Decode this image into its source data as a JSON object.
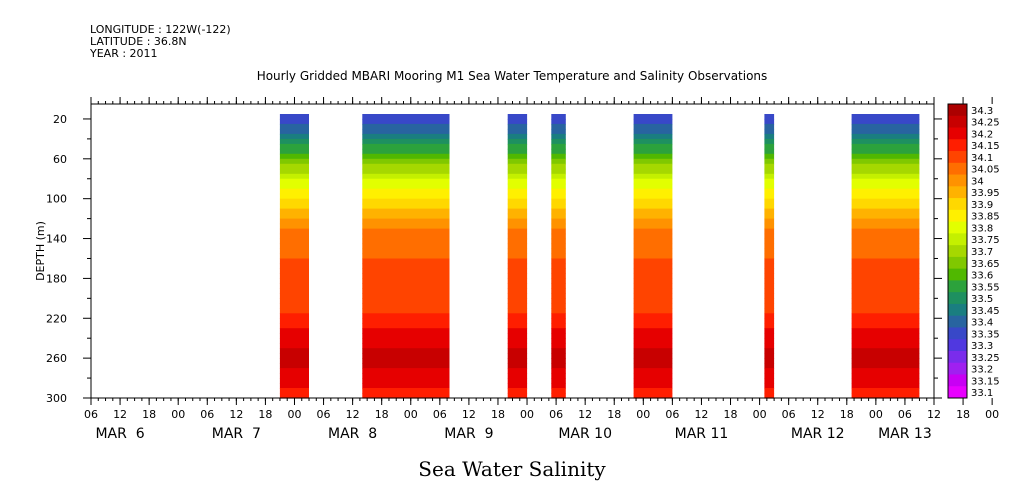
{
  "header": {
    "longitude": "LONGITUDE : 122W(-122)",
    "latitude": "LATITUDE : 36.8N",
    "year": "YEAR : 2011"
  },
  "chart_data": {
    "type": "heatmap",
    "title": "Hourly Gridded MBARI Mooring M1 Sea Water Temperature and Salinity Observations",
    "xlabel": "Sea Water Salinity",
    "ylabel": "DEPTH (m)",
    "y_range_m": [
      300,
      5
    ],
    "y_ticks": [
      "20",
      "60",
      "100",
      "140",
      "180",
      "220",
      "260",
      "300"
    ],
    "y_tick_values": [
      20,
      60,
      100,
      140,
      180,
      220,
      260,
      300
    ],
    "x_range_hours": [
      0,
      174
    ],
    "x_hour_ticks": [
      "06",
      "12",
      "18",
      "00",
      "06",
      "12",
      "18",
      "00",
      "06",
      "12",
      "18",
      "00",
      "06",
      "12",
      "18",
      "00",
      "06",
      "12",
      "18",
      "00",
      "06",
      "12",
      "18",
      "00",
      "06",
      "12",
      "18",
      "00",
      "06",
      "12",
      "18",
      "00",
      "06"
    ],
    "x_day_labels": [
      "MAR  6",
      "MAR  7",
      "MAR  8",
      "MAR  9",
      "MAR 10",
      "MAR 11",
      "MAR 12",
      "MAR 13"
    ],
    "x_day_label_hours": [
      6,
      30,
      54,
      78,
      102,
      126,
      150,
      168
    ],
    "colorbar": {
      "labels": [
        "34.3",
        "34.25",
        "34.2",
        "34.15",
        "34.1",
        "34.05",
        "34",
        "33.95",
        "33.9",
        "33.85",
        "33.8",
        "33.75",
        "33.7",
        "33.65",
        "33.6",
        "33.55",
        "33.5",
        "33.45",
        "33.4",
        "33.35",
        "33.3",
        "33.25",
        "33.2",
        "33.15",
        "33.1"
      ],
      "colors": [
        "#ac0000",
        "#c80000",
        "#e60000",
        "#ff1e00",
        "#ff4400",
        "#ff6e00",
        "#ff9200",
        "#ffb200",
        "#ffd800",
        "#fff000",
        "#e2ff00",
        "#c4f000",
        "#a6d800",
        "#80c800",
        "#50b800",
        "#2ca23c",
        "#1e9060",
        "#1a7e80",
        "#2864a0",
        "#3848c8",
        "#5038e0",
        "#7a2cec",
        "#a020f0",
        "#c800f4",
        "#e800ff"
      ]
    },
    "observation_segments_hours": [
      [
        39,
        45
      ],
      [
        56,
        74
      ],
      [
        86,
        90
      ],
      [
        95,
        98
      ],
      [
        112,
        120
      ],
      [
        139,
        141
      ],
      [
        157,
        171
      ]
    ],
    "profile": [
      {
        "depth": 20,
        "salinity": 33.35
      },
      {
        "depth": 40,
        "salinity": 33.5
      },
      {
        "depth": 60,
        "salinity": 33.65
      },
      {
        "depth": 80,
        "salinity": 33.8
      },
      {
        "depth": 100,
        "salinity": 33.9
      },
      {
        "depth": 120,
        "salinity": 34.0
      },
      {
        "depth": 140,
        "salinity": 34.08
      },
      {
        "depth": 160,
        "salinity": 34.1
      },
      {
        "depth": 180,
        "salinity": 34.1
      },
      {
        "depth": 200,
        "salinity": 34.12
      },
      {
        "depth": 220,
        "salinity": 34.16
      },
      {
        "depth": 240,
        "salinity": 34.23
      },
      {
        "depth": 260,
        "salinity": 34.28
      },
      {
        "depth": 280,
        "salinity": 34.22
      },
      {
        "depth": 300,
        "salinity": 34.18
      }
    ],
    "grid": false,
    "legend": "right"
  }
}
